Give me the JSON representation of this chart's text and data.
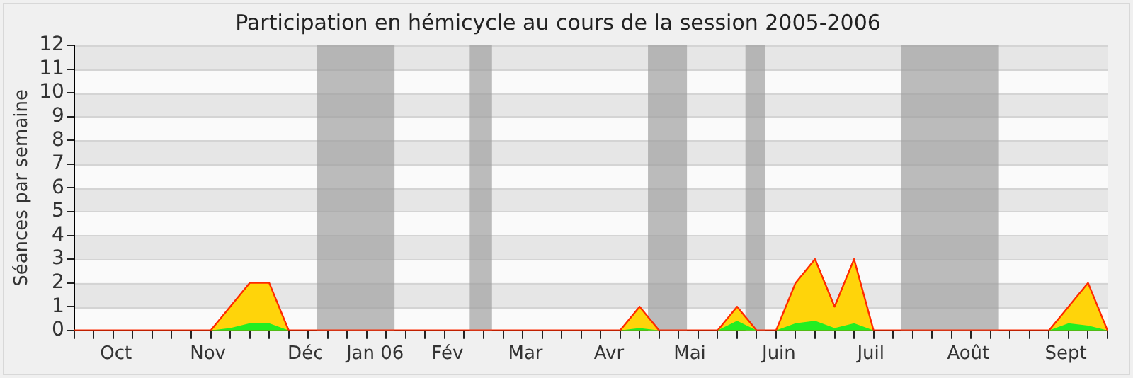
{
  "chart_data": {
    "type": "area",
    "title": "Participation en hémicycle au cours de la session 2005-2006",
    "ylabel": "Séances par semaine",
    "x": [
      "2005-09-26",
      "2005-10-03",
      "2005-10-10",
      "2005-10-17",
      "2005-10-24",
      "2005-10-31",
      "2005-11-07",
      "2005-11-14",
      "2005-11-21",
      "2005-11-28",
      "2005-12-05",
      "2005-12-12",
      "2005-12-19",
      "2005-12-26",
      "2006-01-02",
      "2006-01-09",
      "2006-01-16",
      "2006-01-23",
      "2006-01-30",
      "2006-02-06",
      "2006-02-13",
      "2006-02-20",
      "2006-02-27",
      "2006-03-06",
      "2006-03-13",
      "2006-03-20",
      "2006-03-27",
      "2006-04-03",
      "2006-04-10",
      "2006-04-17",
      "2006-04-24",
      "2006-05-01",
      "2006-05-08",
      "2006-05-15",
      "2006-05-22",
      "2006-05-29",
      "2006-06-05",
      "2006-06-12",
      "2006-06-19",
      "2006-06-26",
      "2006-07-03",
      "2006-07-10",
      "2006-07-17",
      "2006-07-24",
      "2006-07-31",
      "2006-08-07",
      "2006-08-14",
      "2006-08-21",
      "2006-08-28",
      "2006-09-04",
      "2006-09-11",
      "2006-09-18",
      "2006-09-25",
      "2006-10-02"
    ],
    "series": [
      {
        "color": "#ffd40a",
        "values": [
          0,
          0,
          0,
          0,
          0,
          0,
          0,
          0,
          1,
          2,
          2,
          0,
          0,
          0,
          0,
          0,
          0,
          0,
          0,
          0,
          0,
          0,
          0,
          0,
          0,
          0,
          0,
          0,
          0,
          1,
          0,
          0,
          0,
          0,
          1,
          0,
          0,
          2,
          3,
          1,
          3,
          0,
          0,
          0,
          0,
          0,
          0,
          0,
          0,
          0,
          0,
          1,
          2,
          0
        ]
      },
      {
        "color": "#22ee22",
        "values": [
          0,
          0,
          0,
          0,
          0,
          0,
          0,
          0,
          0.1,
          0.3,
          0.3,
          0,
          0,
          0,
          0,
          0,
          0,
          0,
          0,
          0,
          0,
          0,
          0,
          0,
          0,
          0,
          0,
          0,
          0,
          0.1,
          0,
          0,
          0,
          0,
          0.4,
          0,
          0,
          0.3,
          0.4,
          0.1,
          0.3,
          0,
          0,
          0,
          0,
          0,
          0,
          0,
          0,
          0,
          0,
          0.3,
          0.2,
          0
        ]
      }
    ],
    "xlim": [
      "2005-09-26",
      "2006-10-02"
    ],
    "xticks": [
      {
        "value": "2005-09-26",
        "label": null
      },
      {
        "value": "2005-10-03",
        "label": null
      },
      {
        "value": "2005-10-10",
        "label": null
      },
      {
        "value": "2005-10-11",
        "label": "Oct"
      },
      {
        "value": "2005-10-17",
        "label": null
      },
      {
        "value": "2005-10-24",
        "label": null
      },
      {
        "value": "2005-10-31",
        "label": null
      },
      {
        "value": "2005-11-07",
        "label": null
      },
      {
        "value": "2005-11-13",
        "label": "Nov"
      },
      {
        "value": "2005-11-14",
        "label": null
      },
      {
        "value": "2005-11-21",
        "label": null
      },
      {
        "value": "2005-11-28",
        "label": null
      },
      {
        "value": "2005-12-05",
        "label": null
      },
      {
        "value": "2005-12-12",
        "label": null
      },
      {
        "value": "2005-12-18",
        "label": "Déc"
      },
      {
        "value": "2005-12-19",
        "label": null
      },
      {
        "value": "2005-12-26",
        "label": null
      },
      {
        "value": "2006-01-02",
        "label": null
      },
      {
        "value": "2006-01-09",
        "label": null
      },
      {
        "value": "2006-01-12",
        "label": "Jan 06"
      },
      {
        "value": "2006-01-16",
        "label": null
      },
      {
        "value": "2006-01-23",
        "label": null
      },
      {
        "value": "2006-01-30",
        "label": null
      },
      {
        "value": "2006-02-06",
        "label": null
      },
      {
        "value": "2006-02-07",
        "label": "Fév"
      },
      {
        "value": "2006-02-13",
        "label": null
      },
      {
        "value": "2006-02-20",
        "label": null
      },
      {
        "value": "2006-02-27",
        "label": null
      },
      {
        "value": "2006-03-06",
        "label": null
      },
      {
        "value": "2006-03-07",
        "label": "Mar"
      },
      {
        "value": "2006-03-13",
        "label": null
      },
      {
        "value": "2006-03-20",
        "label": null
      },
      {
        "value": "2006-03-27",
        "label": null
      },
      {
        "value": "2006-04-03",
        "label": null
      },
      {
        "value": "2006-04-06",
        "label": "Avr"
      },
      {
        "value": "2006-04-10",
        "label": null
      },
      {
        "value": "2006-04-17",
        "label": null
      },
      {
        "value": "2006-04-24",
        "label": null
      },
      {
        "value": "2006-05-01",
        "label": null
      },
      {
        "value": "2006-05-05",
        "label": "Mai"
      },
      {
        "value": "2006-05-08",
        "label": null
      },
      {
        "value": "2006-05-15",
        "label": null
      },
      {
        "value": "2006-05-22",
        "label": null
      },
      {
        "value": "2006-05-29",
        "label": null
      },
      {
        "value": "2006-06-05",
        "label": null
      },
      {
        "value": "2006-06-06",
        "label": "Juin"
      },
      {
        "value": "2006-06-12",
        "label": null
      },
      {
        "value": "2006-06-19",
        "label": null
      },
      {
        "value": "2006-06-26",
        "label": null
      },
      {
        "value": "2006-07-03",
        "label": null
      },
      {
        "value": "2006-07-09",
        "label": "Juil"
      },
      {
        "value": "2006-07-10",
        "label": null
      },
      {
        "value": "2006-07-17",
        "label": null
      },
      {
        "value": "2006-07-24",
        "label": null
      },
      {
        "value": "2006-07-31",
        "label": null
      },
      {
        "value": "2006-08-07",
        "label": null
      },
      {
        "value": "2006-08-13",
        "label": "Août"
      },
      {
        "value": "2006-08-14",
        "label": null
      },
      {
        "value": "2006-08-21",
        "label": null
      },
      {
        "value": "2006-08-28",
        "label": null
      },
      {
        "value": "2006-09-04",
        "label": null
      },
      {
        "value": "2006-09-11",
        "label": null
      },
      {
        "value": "2006-09-17",
        "label": "Sept"
      },
      {
        "value": "2006-09-18",
        "label": null
      },
      {
        "value": "2006-09-25",
        "label": null
      },
      {
        "value": "2006-10-02",
        "label": null
      }
    ],
    "ylim": [
      0,
      12
    ],
    "yticks": [
      0,
      1,
      2,
      3,
      4,
      5,
      6,
      7,
      8,
      9,
      10,
      11,
      12
    ],
    "bands": [
      {
        "axis": "x",
        "from": "2005-12-22",
        "to": "2006-01-19",
        "color": "#a0a0a0"
      },
      {
        "axis": "x",
        "from": "2006-02-15",
        "to": "2006-02-23",
        "color": "#a0a0a0"
      },
      {
        "axis": "x",
        "from": "2006-04-20",
        "to": "2006-05-04",
        "color": "#a0a0a0"
      },
      {
        "axis": "x",
        "from": "2006-05-25",
        "to": "2006-06-01",
        "color": "#a0a0a0"
      },
      {
        "axis": "x",
        "from": "2006-07-20",
        "to": "2006-08-24",
        "color": "#a0a0a0"
      }
    ],
    "grid": "y",
    "legend": false,
    "marker": "none",
    "line_style": "solid"
  }
}
